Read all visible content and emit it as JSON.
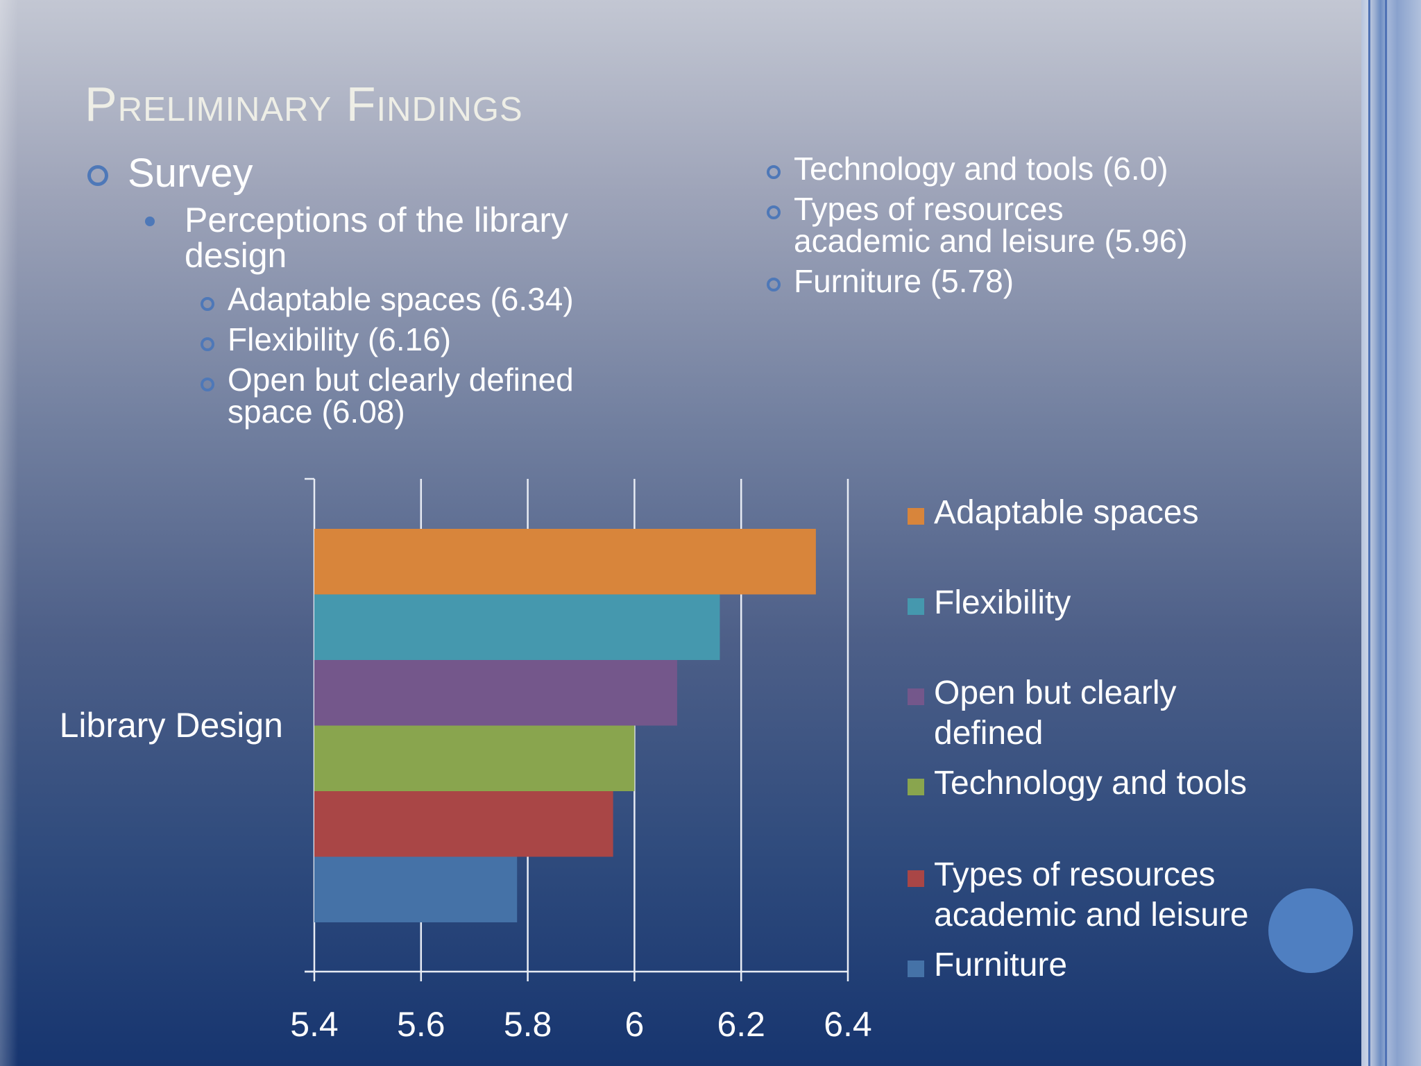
{
  "slide": {
    "title": "Preliminary Findings"
  },
  "left_text": {
    "survey": "Survey",
    "perceptions_line1": "Perceptions of the library",
    "perceptions_line2": "design",
    "items": [
      {
        "line1": "Adaptable spaces (6.34)"
      },
      {
        "line1": "Flexibility (6.16)"
      },
      {
        "line1": "Open but clearly defined",
        "line2": "space (6.08)"
      }
    ]
  },
  "right_text": {
    "items": [
      {
        "line1": "Technology and tools (6.0)"
      },
      {
        "line1": "Types of resources",
        "line2": "academic and leisure (5.96)"
      },
      {
        "line1": "Furniture (5.78)"
      }
    ]
  },
  "chart_data": {
    "type": "bar",
    "orientation": "horizontal",
    "category": "Library Design",
    "xlim": [
      5.4,
      6.4
    ],
    "xticks": [
      "5.4",
      "5.6",
      "5.8",
      "6",
      "6.2",
      "6.4"
    ],
    "grid": true,
    "legend_position": "right",
    "series": [
      {
        "name": "Adaptable spaces",
        "legend_lines": [
          "Adaptable spaces"
        ],
        "value": 6.34,
        "color": "#d8853b"
      },
      {
        "name": "Flexibility",
        "legend_lines": [
          "Flexibility"
        ],
        "value": 6.16,
        "color": "#4598ae"
      },
      {
        "name": "Open but clearly defined",
        "legend_lines": [
          "Open but clearly",
          "defined"
        ],
        "value": 6.08,
        "color": "#74578b"
      },
      {
        "name": "Technology and tools",
        "legend_lines": [
          "Technology and tools"
        ],
        "value": 6.0,
        "color": "#89a54e"
      },
      {
        "name": "Types of resources academic and leisure",
        "legend_lines": [
          "Types of resources",
          "academic and leisure"
        ],
        "value": 5.96,
        "color": "#a94646"
      },
      {
        "name": "Furniture",
        "legend_lines": [
          "Furniture"
        ],
        "value": 5.78,
        "color": "#4572a7"
      }
    ]
  },
  "colors": {
    "accent": "#4e78b8",
    "title": "#eeeee6",
    "gridline": "#e8ecf4"
  }
}
